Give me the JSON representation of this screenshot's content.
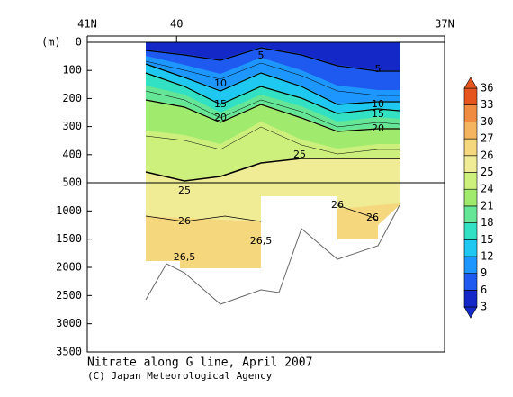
{
  "chart_data": {
    "type": "section",
    "title": "Nitrate along G line, April 2007",
    "credit": "(C) Japan Meteorological Agency",
    "ylabel": "(m)",
    "ylim": [
      0,
      3500
    ],
    "ysplit": 500,
    "yticks": [
      0,
      100,
      200,
      300,
      400,
      500,
      1000,
      1500,
      2000,
      2500,
      3000,
      3500
    ],
    "xlim": [
      41,
      37
    ],
    "xticks": [
      {
        "value": 41,
        "label": "41N"
      },
      40,
      {
        "value": 37,
        "label": "37N"
      }
    ],
    "colorbar": {
      "levels": [
        3,
        6,
        9,
        12,
        15,
        18,
        21,
        24,
        25,
        26,
        27,
        30,
        33,
        36
      ],
      "colors": [
        "#1428c8",
        "#1e5af0",
        "#1e96ff",
        "#1ec8f0",
        "#32e1c3",
        "#64e696",
        "#a0eb6e",
        "#cdf07d",
        "#f0ec96",
        "#f5d77d",
        "#f5b45f",
        "#f08c41",
        "#e6551e"
      ]
    },
    "contour_labels": [
      "5",
      "5",
      "10",
      "10",
      "15",
      "15",
      "20",
      "20",
      "25",
      "25",
      "26",
      "26",
      "26",
      "26,5",
      "26,5"
    ]
  }
}
